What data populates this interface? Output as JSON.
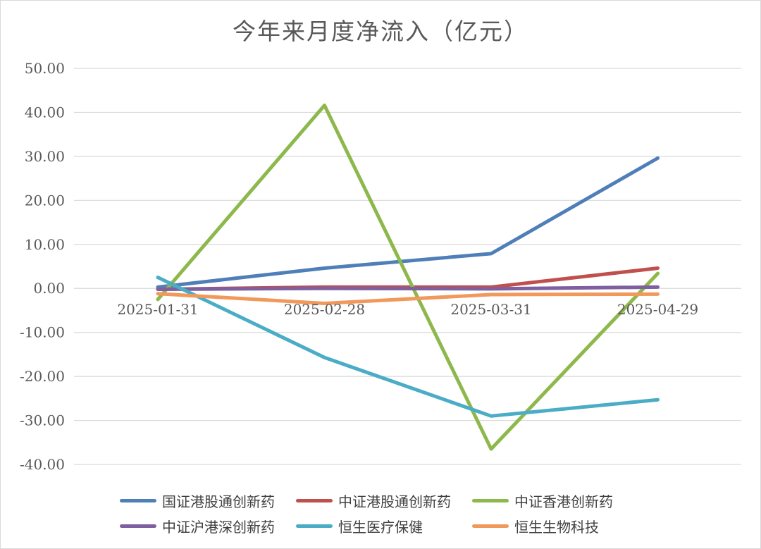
{
  "chart_data": {
    "type": "line",
    "title": "今年来月度净流入（亿元）",
    "x": [
      "2025-01-31",
      "2025-02-28",
      "2025-03-31",
      "2025-04-29"
    ],
    "ylim": [
      -40,
      50
    ],
    "yticks": [
      "50.00",
      "40.00",
      "30.00",
      "20.00",
      "10.00",
      "0.00",
      "-10.00",
      "-20.00",
      "-30.00",
      "-40.00"
    ],
    "grid": true,
    "legend_position": "bottom",
    "series": [
      {
        "name": "国证港股通创新药",
        "color": "#4f7fb8",
        "values": [
          0.3,
          4.6,
          7.9,
          29.6
        ]
      },
      {
        "name": "中证港股通创新药",
        "color": "#c0504d",
        "values": [
          -0.2,
          0.3,
          0.3,
          4.6
        ]
      },
      {
        "name": "中证香港创新药",
        "color": "#8db84b",
        "values": [
          -2.5,
          41.6,
          -36.5,
          3.4
        ]
      },
      {
        "name": "中证沪港深创新药",
        "color": "#7e5fa0",
        "values": [
          -0.2,
          0.0,
          -0.1,
          0.3
        ]
      },
      {
        "name": "恒生医疗保健",
        "color": "#4bacc6",
        "values": [
          2.5,
          -15.7,
          -29.0,
          -25.3
        ]
      },
      {
        "name": "恒生生物科技",
        "color": "#f1995a",
        "values": [
          -1.2,
          -3.4,
          -1.4,
          -1.3
        ]
      }
    ]
  }
}
